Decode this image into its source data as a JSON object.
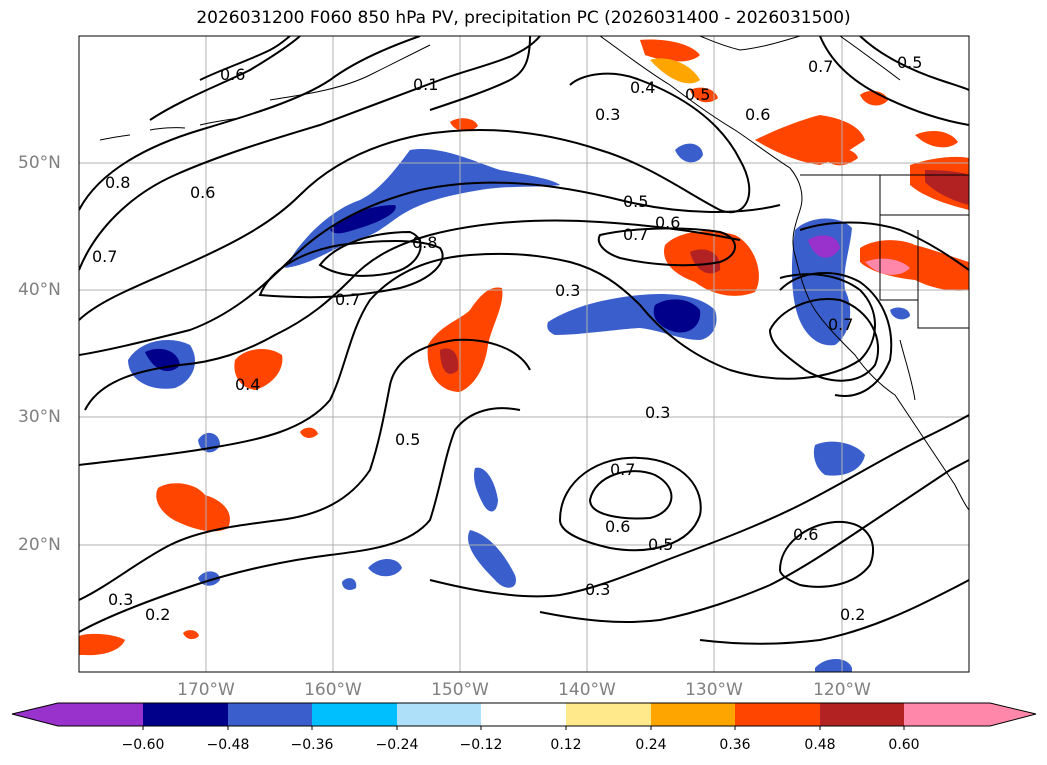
{
  "title": "2026031200 F060 850 hPa PV, precipitation PC (2026031400 - 2026031500)",
  "lat_labels": [
    "50°N",
    "40°N",
    "30°N",
    "20°N"
  ],
  "lon_labels": [
    "170°W",
    "160°W",
    "150°W",
    "140°W",
    "130°W",
    "120°W"
  ],
  "colorbar": {
    "ticks": [
      "−0.60",
      "−0.48",
      "−0.36",
      "−0.24",
      "−0.12",
      "0.12",
      "0.24",
      "0.36",
      "0.48",
      "0.60"
    ],
    "colors": [
      "#9932cc",
      "#00008b",
      "#3a5fcd",
      "#00bfff",
      "#aee0fa",
      "#ffffff",
      "#ffe98a",
      "#ffa500",
      "#ff4500",
      "#b22222",
      "#ff88aa"
    ]
  },
  "contour_labels": [
    "0.6",
    "0.1",
    "0.8",
    "0.4",
    "0.5",
    "0.3",
    "0.6",
    "0.7",
    "0.5",
    "0.7",
    "0.6",
    "0.7",
    "0.8",
    "0.7",
    "0.3",
    "0.4",
    "0.5",
    "0.3",
    "0.7",
    "0.6",
    "0.5",
    "0.6",
    "0.3",
    "0.2",
    "0.3",
    "0.2",
    "0.5",
    "0.6",
    "0.7"
  ]
}
